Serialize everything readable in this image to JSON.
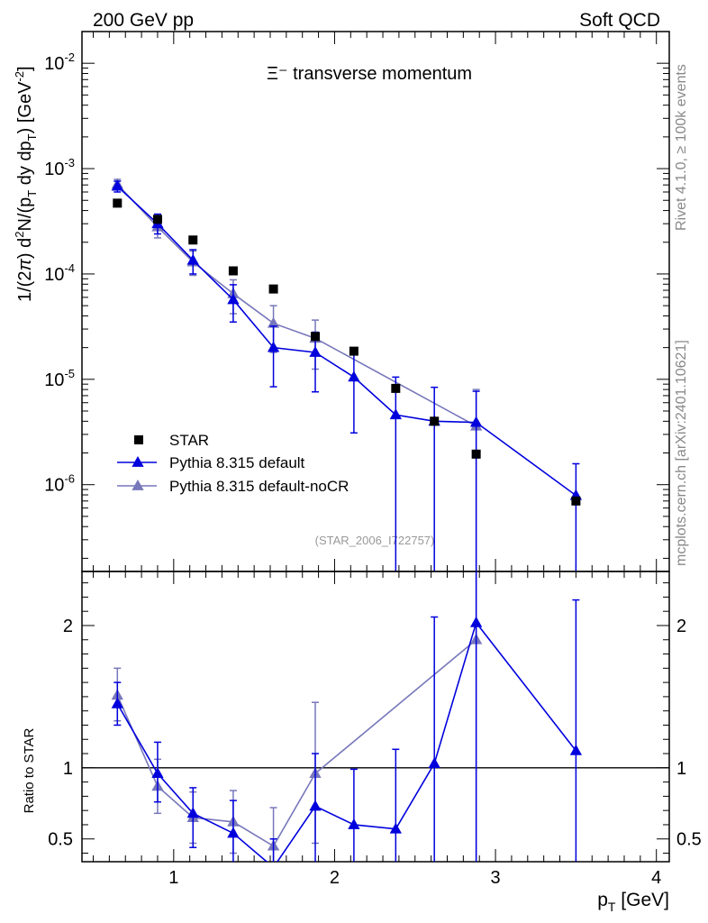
{
  "header": {
    "left": "200 GeV pp",
    "right": "Soft QCD"
  },
  "side_labels": {
    "rivet": "Rivet 4.1.0, ≥ 100k events",
    "mcplots": "mcplots.cern.ch [arXiv:2401.10621]"
  },
  "chart_data": [
    {
      "type": "scatter",
      "title": "Ξ⁻ transverse momentum",
      "analysis_tag": "(STAR_2006_I722757)",
      "ylabel": "1/(2π)  d²N/(p_T dy dp_T) [GeV⁻²]",
      "xlabel": "p_T [GeV]",
      "yscale": "log",
      "xlim": [
        0.43,
        4.08
      ],
      "ylim": [
        1.5e-07,
        0.02
      ],
      "yticks": [
        {
          "value": 1e-06,
          "label": "10",
          "exp": "-6"
        },
        {
          "value": 1e-05,
          "label": "10",
          "exp": "-5"
        },
        {
          "value": 0.0001,
          "label": "10",
          "exp": "-4"
        },
        {
          "value": 0.001,
          "label": "10",
          "exp": "-3"
        },
        {
          "value": 0.01,
          "label": "10",
          "exp": "-2"
        }
      ],
      "legend": {
        "placement": "bottom-left",
        "entries": [
          "STAR",
          "Pythia 8.315 default",
          "Pythia 8.315 default-noCR"
        ]
      },
      "series": [
        {
          "name": "STAR",
          "style": "data",
          "color": "#000000",
          "x": [
            0.65,
            0.9,
            1.12,
            1.37,
            1.62,
            1.88,
            2.12,
            2.38,
            2.62,
            2.88,
            3.5
          ],
          "y": [
            0.00047,
            0.00033,
            0.00021,
            0.000107,
            7.2e-05,
            2.55e-05,
            1.85e-05,
            8.2e-06,
            4e-06,
            1.95e-06,
            7e-07
          ]
        },
        {
          "name": "Pythia 8.315 default",
          "style": "mc",
          "color": "#0000dd",
          "x": [
            0.65,
            0.9,
            1.12,
            1.37,
            1.62,
            1.88,
            2.12,
            2.38,
            2.62,
            2.88,
            3.5
          ],
          "y": [
            0.00068,
            0.0003,
            0.000135,
            5.7e-05,
            2e-05,
            1.8e-05,
            1.05e-05,
            4.6e-06,
            4e-06,
            3.9e-06,
            7.9e-07
          ],
          "y_low": [
            0.0006,
            0.00024,
            0.0001,
            3.5e-05,
            8.5e-06,
            7.6e-06,
            3.1e-06,
            1e-08,
            1e-08,
            1e-08,
            1e-08
          ],
          "y_high": [
            0.00076,
            0.00037,
            0.00017,
            7.9e-05,
            3.2e-05,
            2.8e-05,
            1.8e-05,
            1.05e-05,
            8.4e-06,
            7.7e-06,
            1.58e-06
          ]
        },
        {
          "name": "Pythia 8.315 default-noCR",
          "style": "mc",
          "color": "#7777bb",
          "x": [
            0.65,
            0.9,
            1.12,
            1.37,
            1.62,
            1.88,
            2.88
          ],
          "y": [
            0.00071,
            0.00028,
            0.00013,
            6.5e-05,
            3.4e-05,
            2.45e-05,
            3.6e-06
          ],
          "y_low": [
            0.00063,
            0.00022,
            9.7e-05,
            4.2e-05,
            1.8e-05,
            1.25e-05,
            1e-08
          ],
          "y_high": [
            0.00079,
            0.00034,
            0.000165,
            8.8e-05,
            5e-05,
            3.65e-05,
            8e-06
          ]
        }
      ]
    },
    {
      "type": "scatter",
      "title": "",
      "ylabel": "Ratio to STAR",
      "xlabel": "p_T [GeV]",
      "xlim": [
        0.43,
        4.08
      ],
      "ylim": [
        0.34,
        2.38
      ],
      "xticks": [
        1,
        2,
        3,
        4
      ],
      "yticks": [
        0.5,
        1,
        2
      ],
      "reference_line": 1,
      "series": [
        {
          "name": "Pythia 8.315 default",
          "color": "#0000dd",
          "x": [
            0.65,
            0.9,
            1.12,
            1.37,
            1.62,
            1.88,
            2.12,
            2.38,
            2.62,
            2.88,
            3.5
          ],
          "y": [
            1.45,
            0.96,
            0.68,
            0.54,
            0.3,
            0.73,
            0.6,
            0.57,
            1.03,
            2.02,
            1.12
          ],
          "y_low": [
            1.3,
            0.76,
            0.44,
            0.3,
            0.1,
            0.29,
            0.1,
            0.1,
            0.1,
            0.1,
            0.1
          ],
          "y_high": [
            1.6,
            1.18,
            0.86,
            0.77,
            0.5,
            1.1,
            0.99,
            1.13,
            2.06,
            3.0,
            2.18
          ]
        },
        {
          "name": "Pythia 8.315 default-noCR",
          "color": "#7777bb",
          "x": [
            0.65,
            0.9,
            1.12,
            1.37,
            1.62,
            1.88,
            2.88
          ],
          "y": [
            1.51,
            0.87,
            0.65,
            0.62,
            0.45,
            0.96,
            1.9
          ],
          "y_low": [
            1.33,
            0.68,
            0.47,
            0.4,
            0.24,
            0.47,
            0.1
          ],
          "y_high": [
            1.7,
            1.06,
            0.83,
            0.84,
            0.72,
            1.46,
            3.0
          ]
        }
      ]
    }
  ]
}
